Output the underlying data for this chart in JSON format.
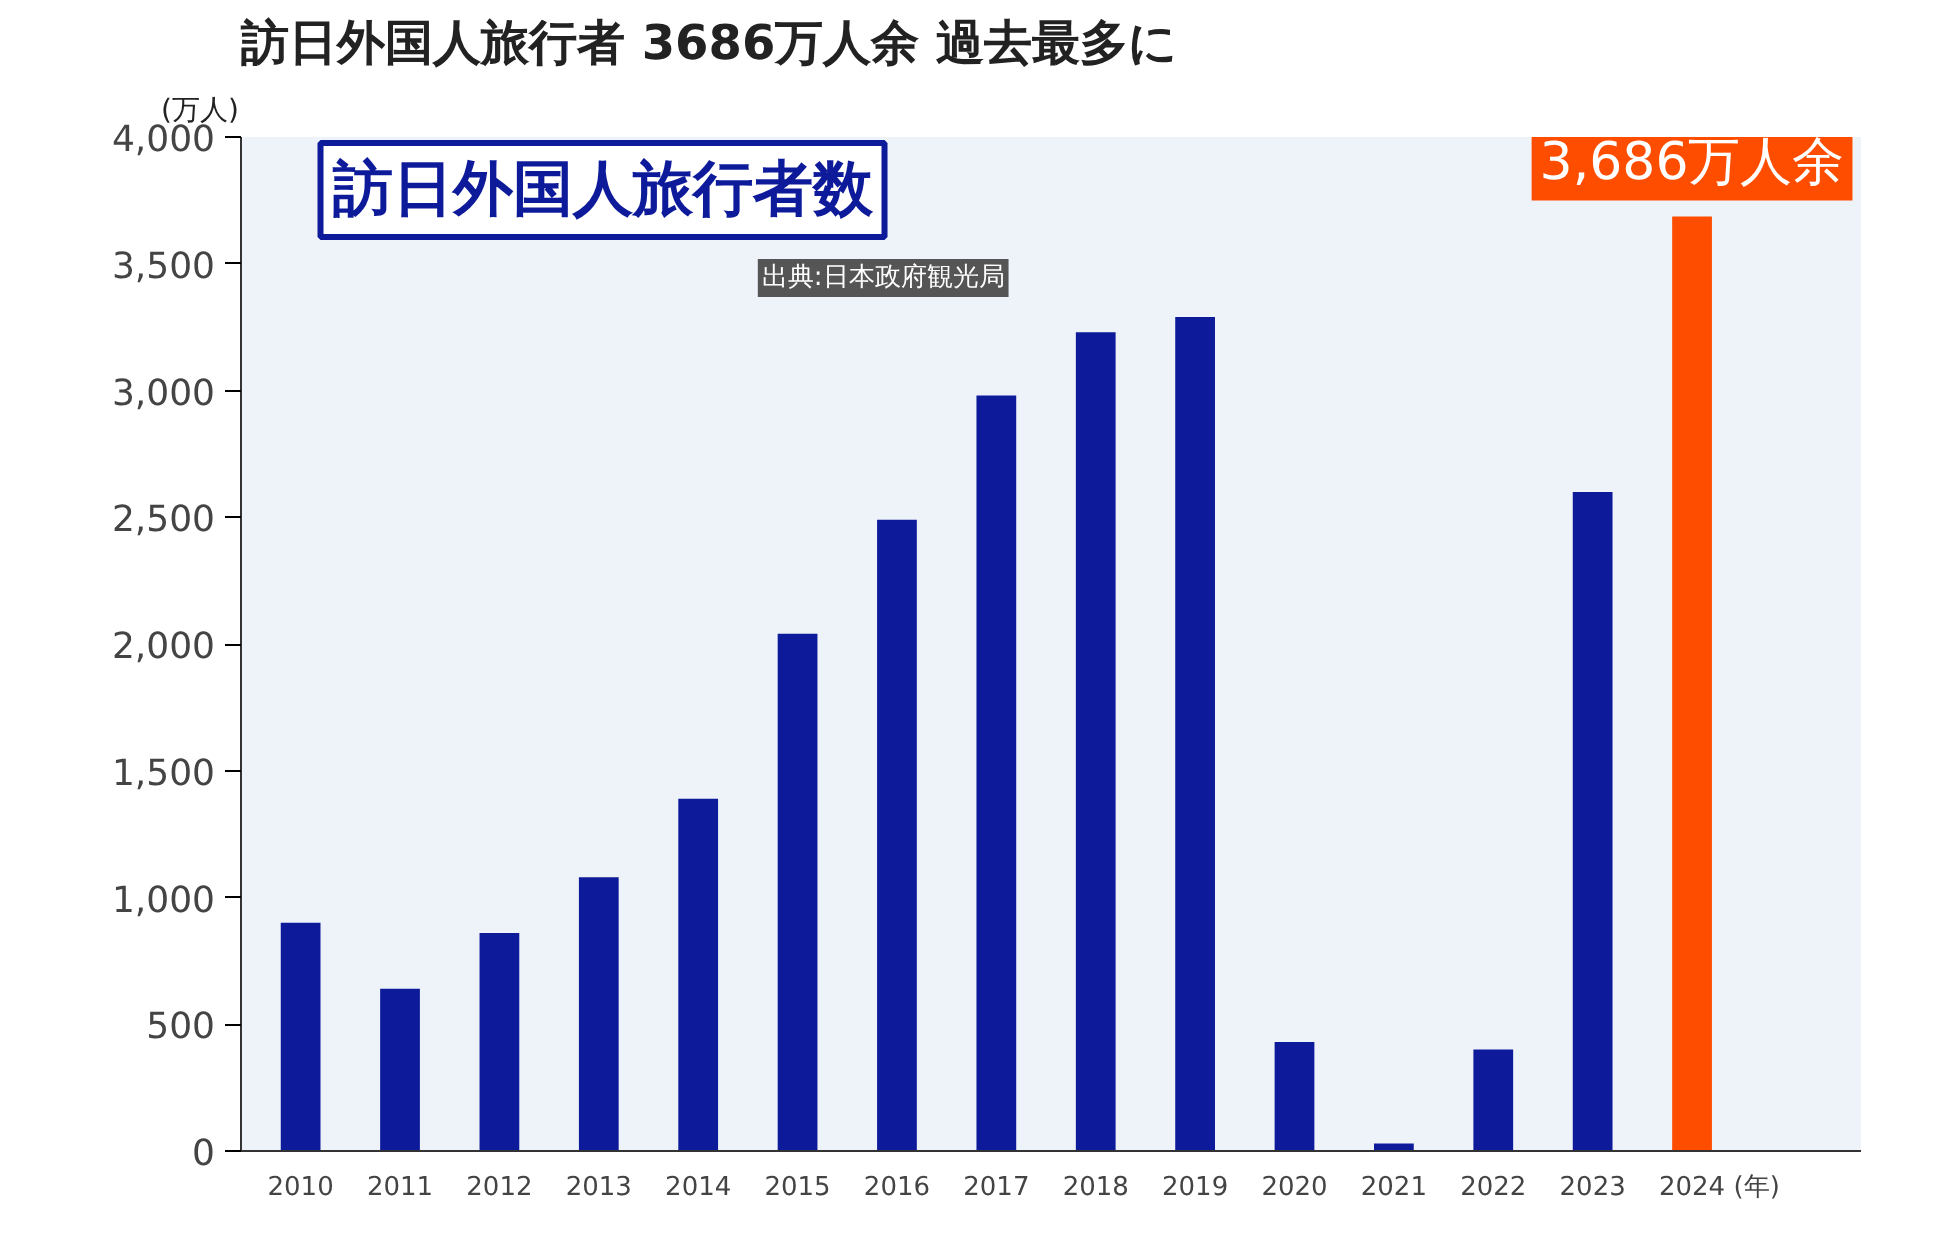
{
  "chart_data": {
    "type": "bar",
    "title": "訪日外国人旅行者 3686万人余 過去最多に",
    "subtitle": "訪日外国人旅行者数",
    "annotations": [
      "出典:日本政府観光局"
    ],
    "ylabel": "(万人)",
    "xlabel": "(年)",
    "categories": [
      "2010",
      "2011",
      "2012",
      "2013",
      "2014",
      "2015",
      "2016",
      "2017",
      "2018",
      "2019",
      "2020",
      "2021",
      "2022",
      "2023",
      "2024"
    ],
    "values": [
      900,
      640,
      860,
      1080,
      1390,
      2040,
      2490,
      2980,
      3230,
      3290,
      430,
      30,
      400,
      2600,
      3686
    ],
    "colors": [
      "#0d1a9a",
      "#0d1a9a",
      "#0d1a9a",
      "#0d1a9a",
      "#0d1a9a",
      "#0d1a9a",
      "#0d1a9a",
      "#0d1a9a",
      "#0d1a9a",
      "#0d1a9a",
      "#0d1a9a",
      "#0d1a9a",
      "#0d1a9a",
      "#0d1a9a",
      "#ff4d00"
    ],
    "value_labels": [
      null,
      null,
      null,
      null,
      null,
      null,
      null,
      null,
      null,
      null,
      null,
      null,
      null,
      null,
      "3,686万人余"
    ],
    "ylim": [
      0,
      4000
    ],
    "yticks": [
      0,
      {
        "value": 500,
        "label": "500"
      },
      {
        "value": 1000,
        "label": "1,000"
      },
      {
        "value": 1500,
        "label": "1,500"
      },
      {
        "value": 2000,
        "label": "2,000"
      },
      {
        "value": 2500,
        "label": "2,500"
      },
      {
        "value": 3000,
        "label": "3,000"
      },
      {
        "value": 3500,
        "label": "3,500"
      },
      {
        "value": 4000,
        "label": "4,000"
      }
    ],
    "grid": false
  }
}
